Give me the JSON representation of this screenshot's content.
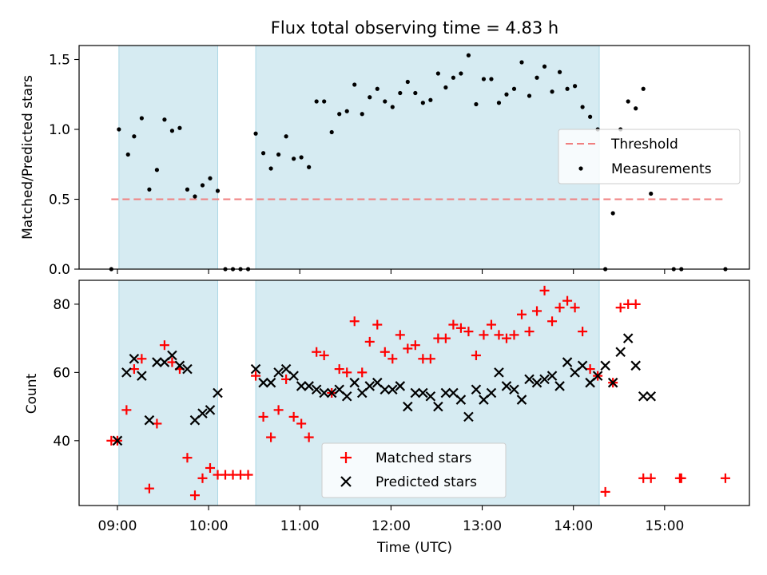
{
  "chart_data": [
    {
      "type": "scatter",
      "title": "Flux total observing time = 4.83 h",
      "xlabel": "",
      "ylabel": "Matched/Predicted stars",
      "ylim": [
        0,
        1.6
      ],
      "yticks": [
        "0.0",
        "0.5",
        "1.0",
        "1.5"
      ],
      "xticks": [
        "09:00",
        "10:00",
        "11:00",
        "12:00",
        "13:00",
        "14:00",
        "15:00"
      ],
      "xlim_hours": [
        8.58,
        15.93
      ],
      "shaded_intervals": [
        [
          "09:01",
          "10:06"
        ],
        [
          "10:31",
          "14:17"
        ]
      ],
      "threshold": {
        "name": "Threshold",
        "value": 0.5,
        "x_range": [
          "08:56",
          "15:40"
        ],
        "color": "#f08080"
      },
      "legend_position": "center-right",
      "series": [
        {
          "name": "Measurements",
          "color": "#000000",
          "x": [
            "08:56",
            "09:01",
            "09:07",
            "09:11",
            "09:16",
            "09:21",
            "09:26",
            "09:31",
            "09:36",
            "09:41",
            "09:46",
            "09:51",
            "09:56",
            "10:01",
            "10:06",
            "10:11",
            "10:16",
            "10:21",
            "10:26",
            "10:31",
            "10:36",
            "10:41",
            "10:46",
            "10:51",
            "10:56",
            "11:01",
            "11:06",
            "11:11",
            "11:16",
            "11:21",
            "11:26",
            "11:31",
            "11:36",
            "11:41",
            "11:46",
            "11:51",
            "11:56",
            "12:01",
            "12:06",
            "12:11",
            "12:16",
            "12:21",
            "12:26",
            "12:31",
            "12:36",
            "12:41",
            "12:46",
            "12:51",
            "12:56",
            "13:01",
            "13:06",
            "13:11",
            "13:16",
            "13:21",
            "13:26",
            "13:31",
            "13:36",
            "13:41",
            "13:46",
            "13:51",
            "13:56",
            "14:01",
            "14:06",
            "14:11",
            "14:16",
            "14:21",
            "14:26",
            "14:31",
            "14:36",
            "14:41",
            "14:46",
            "14:51",
            "15:06",
            "15:11",
            "15:40"
          ],
          "y": [
            0.0,
            1.0,
            0.82,
            0.95,
            1.08,
            0.57,
            0.71,
            1.07,
            0.99,
            1.01,
            0.57,
            0.52,
            0.6,
            0.65,
            0.56,
            0.0,
            0.0,
            0.0,
            0.0,
            0.97,
            0.83,
            0.72,
            0.82,
            0.95,
            0.79,
            0.8,
            0.73,
            1.2,
            1.2,
            0.98,
            1.11,
            1.13,
            1.32,
            1.11,
            1.23,
            1.29,
            1.2,
            1.16,
            1.26,
            1.34,
            1.26,
            1.19,
            1.21,
            1.4,
            1.3,
            1.37,
            1.4,
            1.53,
            1.18,
            1.36,
            1.36,
            1.19,
            1.25,
            1.29,
            1.48,
            1.24,
            1.37,
            1.45,
            1.27,
            1.41,
            1.29,
            1.31,
            1.16,
            1.09,
            1.0,
            0.0,
            0.4,
            1.0,
            1.2,
            1.15,
            1.29,
            0.54,
            0.0,
            0.0,
            0.0
          ]
        }
      ]
    },
    {
      "type": "scatter",
      "title": "",
      "xlabel": "Time (UTC)",
      "ylabel": "Count",
      "ylim": [
        21,
        87
      ],
      "yticks": [
        "40",
        "60",
        "80"
      ],
      "xticks": [
        "09:00",
        "10:00",
        "11:00",
        "12:00",
        "13:00",
        "14:00",
        "15:00"
      ],
      "legend_position": "lower-center",
      "series": [
        {
          "name": "Matched stars",
          "marker": "+",
          "color": "#ff0000",
          "x": [
            "08:56",
            "09:00",
            "09:06",
            "09:11",
            "09:16",
            "09:21",
            "09:26",
            "09:31",
            "09:36",
            "09:41",
            "09:46",
            "09:51",
            "09:56",
            "10:01",
            "10:06",
            "10:11",
            "10:16",
            "10:21",
            "10:26",
            "10:31",
            "10:36",
            "10:41",
            "10:46",
            "10:51",
            "10:56",
            "11:01",
            "11:06",
            "11:11",
            "11:16",
            "11:21",
            "11:26",
            "11:31",
            "11:36",
            "11:41",
            "11:46",
            "11:51",
            "11:56",
            "12:01",
            "12:06",
            "12:11",
            "12:16",
            "12:21",
            "12:26",
            "12:31",
            "12:36",
            "12:41",
            "12:46",
            "12:51",
            "12:56",
            "13:01",
            "13:06",
            "13:11",
            "13:16",
            "13:21",
            "13:26",
            "13:31",
            "13:36",
            "13:41",
            "13:46",
            "13:51",
            "13:56",
            "14:01",
            "14:06",
            "14:11",
            "14:16",
            "14:21",
            "14:26",
            "14:31",
            "14:36",
            "14:41",
            "14:46",
            "14:51",
            "15:10",
            "15:11",
            "15:40"
          ],
          "y": [
            40,
            40,
            49,
            61,
            64,
            26,
            45,
            68,
            63,
            61,
            35,
            24,
            29,
            32,
            30,
            30,
            30,
            30,
            30,
            59,
            47,
            41,
            49,
            58,
            47,
            45,
            41,
            66,
            65,
            54,
            61,
            60,
            75,
            60,
            69,
            74,
            66,
            64,
            71,
            67,
            68,
            64,
            64,
            70,
            70,
            74,
            73,
            72,
            65,
            71,
            74,
            71,
            70,
            71,
            77,
            72,
            78,
            84,
            75,
            79,
            81,
            79,
            72,
            61,
            59,
            25,
            57,
            79,
            80,
            80,
            29,
            29,
            29,
            29,
            29
          ]
        },
        {
          "name": "Predicted stars",
          "marker": "x",
          "color": "#000000",
          "x": [
            "09:00",
            "09:06",
            "09:11",
            "09:16",
            "09:21",
            "09:26",
            "09:31",
            "09:36",
            "09:41",
            "09:46",
            "09:51",
            "09:56",
            "10:01",
            "10:06",
            "10:31",
            "10:36",
            "10:41",
            "10:46",
            "10:51",
            "10:56",
            "11:01",
            "11:06",
            "11:11",
            "11:16",
            "11:21",
            "11:26",
            "11:31",
            "11:36",
            "11:41",
            "11:46",
            "11:51",
            "11:56",
            "12:01",
            "12:06",
            "12:11",
            "12:16",
            "12:21",
            "12:26",
            "12:31",
            "12:36",
            "12:41",
            "12:46",
            "12:51",
            "12:56",
            "13:01",
            "13:06",
            "13:11",
            "13:16",
            "13:21",
            "13:26",
            "13:31",
            "13:36",
            "13:41",
            "13:46",
            "13:51",
            "13:56",
            "14:01",
            "14:06",
            "14:11",
            "14:16",
            "14:21",
            "14:26",
            "14:31",
            "14:36",
            "14:41",
            "14:46",
            "14:51"
          ],
          "y": [
            40,
            60,
            64,
            59,
            46,
            63,
            63,
            65,
            62,
            61,
            46,
            48,
            49,
            54,
            61,
            57,
            57,
            60,
            61,
            59,
            56,
            56,
            55,
            54,
            54,
            55,
            53,
            57,
            54,
            56,
            57,
            55,
            55,
            56,
            50,
            54,
            54,
            53,
            50,
            54,
            54,
            52,
            47,
            55,
            52,
            54,
            60,
            56,
            55,
            52,
            58,
            57,
            58,
            59,
            56,
            63,
            60,
            62,
            57,
            59,
            62,
            57,
            66,
            70,
            62,
            53,
            53
          ]
        }
      ]
    }
  ]
}
